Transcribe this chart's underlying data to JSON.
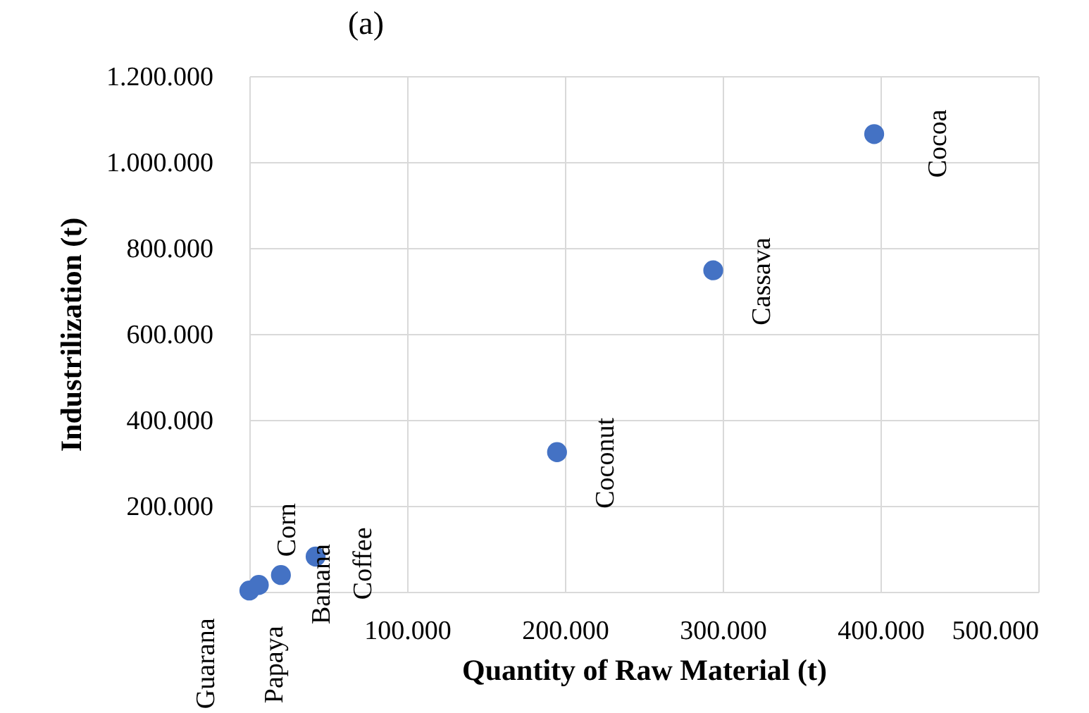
{
  "chart_data": {
    "type": "scatter",
    "title": "(a)",
    "xlabel": "Quantity of Raw Material (t)",
    "ylabel": "Industrilization (t)",
    "x": [
      0,
      6000,
      20000,
      42000,
      44000,
      195000,
      294000,
      396000
    ],
    "series": [
      {
        "color": "#4472c4",
        "values": [
          3000,
          16000,
          39000,
          82000,
          null,
          325000,
          748000,
          1065000
        ]
      }
    ],
    "xlim": [
      0,
      500000
    ],
    "ylim": [
      0,
      1200000
    ],
    "xticks": [
      {
        "value": 0,
        "label": null
      },
      {
        "value": 100000,
        "label": "100.000"
      },
      {
        "value": 200000,
        "label": "200.000"
      },
      {
        "value": 300000,
        "label": "300.000"
      },
      {
        "value": 400000,
        "label": "400.000"
      },
      {
        "value": 500000,
        "label": "500.000"
      }
    ],
    "yticks": [
      {
        "value": 0,
        "label": null
      },
      {
        "value": 200000,
        "label": "200.000"
      },
      {
        "value": 400000,
        "label": "400.000"
      },
      {
        "value": 600000,
        "label": "600.000"
      },
      {
        "value": 800000,
        "label": "800.000"
      },
      {
        "value": 1000000,
        "label": "1.000.000"
      },
      {
        "value": 1200000,
        "label": "1.200.000"
      }
    ],
    "grid": true,
    "marker": "circle",
    "annotations": [
      {
        "text": "Guarana",
        "x": 0,
        "y": 3000
      },
      {
        "text": "Papaya",
        "x": 6000,
        "y": 16000
      },
      {
        "text": "Corn",
        "x": 20000,
        "y": 39000
      },
      {
        "text": "Banana",
        "x": 42000,
        "y": 82000
      },
      {
        "text": "Coffee",
        "x": 44000,
        "y": 80000
      },
      {
        "text": "Coconut",
        "x": 195000,
        "y": 325000
      },
      {
        "text": "Cassava",
        "x": 294000,
        "y": 748000
      },
      {
        "text": "Cocoa",
        "x": 396000,
        "y": 1065000
      }
    ]
  }
}
